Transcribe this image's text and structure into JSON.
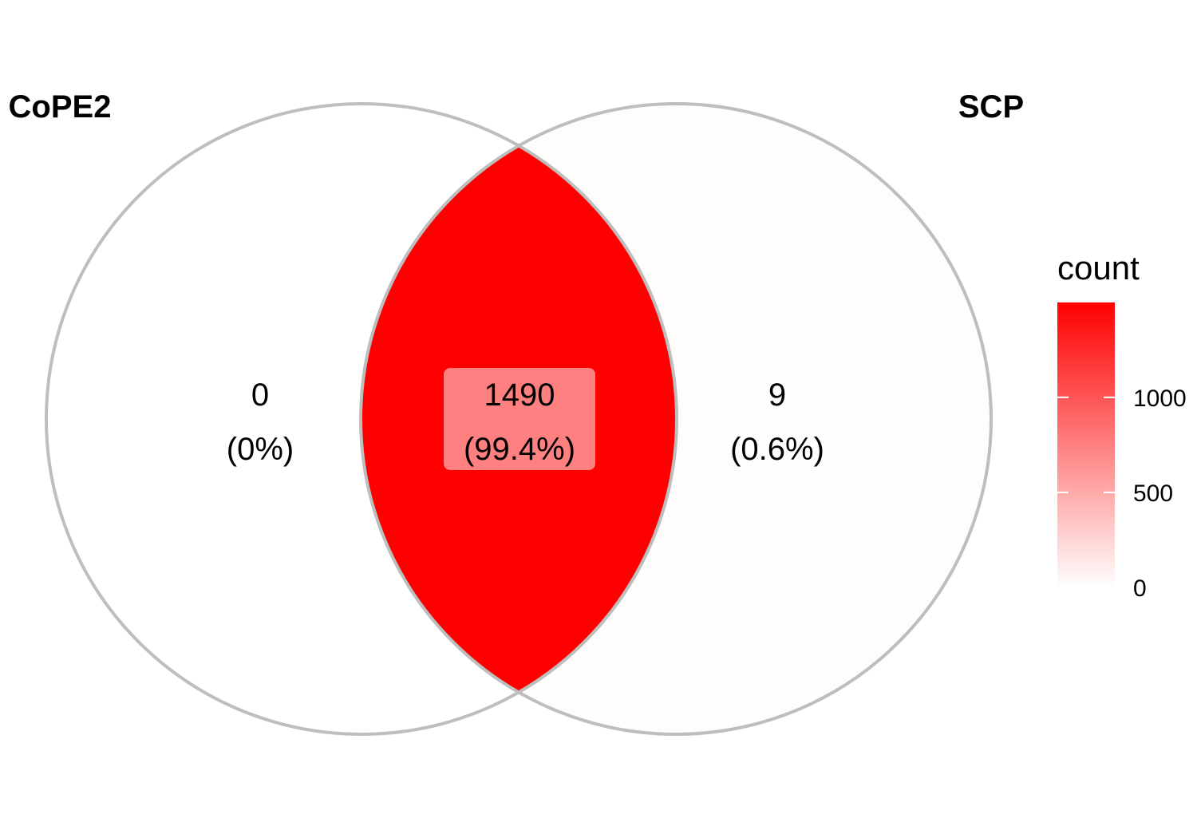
{
  "chart_data": {
    "type": "venn",
    "sets": [
      {
        "name": "CoPE2"
      },
      {
        "name": "SCP"
      }
    ],
    "regions": [
      {
        "sets": [
          "CoPE2"
        ],
        "count": 0,
        "count_label": "0",
        "percent_label": "(0%)",
        "fill": "#FFFFFF"
      },
      {
        "sets": [
          "CoPE2",
          "SCP"
        ],
        "count": 1490,
        "count_label": "1490",
        "percent_label": "(99.4%)",
        "fill": "#FF0000"
      },
      {
        "sets": [
          "SCP"
        ],
        "count": 9,
        "count_label": "9",
        "percent_label": "(0.6%)",
        "fill": "#FEFDFC"
      }
    ],
    "legend": {
      "title": "count",
      "position": "right",
      "type": "colorbar",
      "range": [
        0,
        1499
      ],
      "low_color": "#FFFFFF",
      "high_color": "#FF0000",
      "ticks": [
        {
          "value": 0,
          "label": "0"
        },
        {
          "value": 500,
          "label": "500"
        },
        {
          "value": 1000,
          "label": "1000"
        }
      ]
    },
    "edge_color": "#BEBEBE"
  }
}
